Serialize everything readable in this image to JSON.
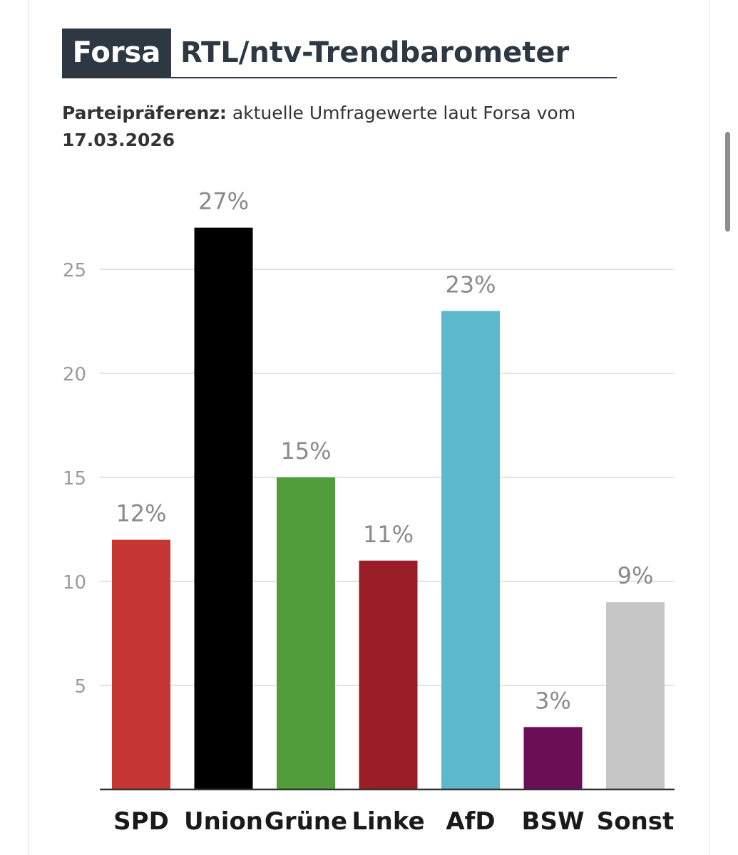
{
  "header": {
    "brand": "Forsa",
    "title": "RTL/ntv-Trendbarometer"
  },
  "subtitle": {
    "bold_prefix": "Parteipräferenz:",
    "text": " aktuelle Umfragewerte laut Forsa vom ",
    "date": "17.03.2026"
  },
  "colors": {
    "header_bg": "#2e3842",
    "grid": "#e3e3e3",
    "axis": "#333333",
    "tick_label": "#9a9a9a",
    "value_label": "#8a8a8a",
    "category_label": "#1a1a1a"
  },
  "chart_data": {
    "type": "bar",
    "title": "RTL/ntv-Trendbarometer",
    "xlabel": "",
    "ylabel": "",
    "categories": [
      "SPD",
      "Union",
      "Grüne",
      "Linke",
      "AfD",
      "BSW",
      "Sonst"
    ],
    "values": [
      12,
      27,
      15,
      11,
      23,
      3,
      9
    ],
    "value_labels": [
      "12%",
      "27%",
      "15%",
      "11%",
      "23%",
      "3%",
      "9%"
    ],
    "colors": [
      "#c63633",
      "#000000",
      "#519d3c",
      "#991d26",
      "#5bb9cb",
      "#6a0f55",
      "#c6c6c6"
    ],
    "yticks": [
      5,
      10,
      15,
      20,
      25
    ],
    "ylim": [
      0,
      27
    ],
    "grid": true,
    "legend": "none"
  }
}
